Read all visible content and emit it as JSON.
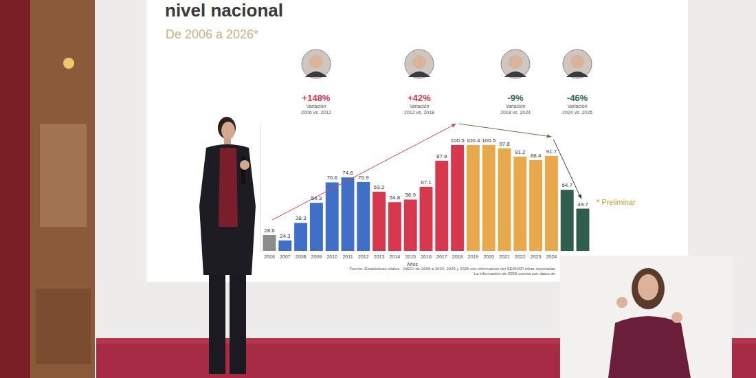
{
  "chart_data": {
    "type": "bar",
    "title": "nivel nacional",
    "subtitle": "De 2006 a 2026*",
    "x_label": "Años",
    "categories": [
      "2006",
      "2007",
      "2008",
      "2009",
      "2010",
      "2011",
      "2012",
      "2013",
      "2014",
      "2015",
      "2016",
      "2017",
      "2018",
      "2019",
      "2020",
      "2021",
      "2022",
      "2023",
      "2024",
      null,
      null
    ],
    "values": [
      28.6,
      24.3,
      38.3,
      54.3,
      70.6,
      74.6,
      70.9,
      63.2,
      54.8,
      56.9,
      67.1,
      87.9,
      100.5,
      100.4,
      100.5,
      97.8,
      91.2,
      88.4,
      91.7,
      64.7,
      49.7
    ],
    "colors": [
      "#8c8c8c",
      "#3f6fc6",
      "#3f6fc6",
      "#3f6fc6",
      "#3f6fc6",
      "#3f6fc6",
      "#3f6fc6",
      "#d8384e",
      "#d8384e",
      "#d8384e",
      "#d8384e",
      "#d8384e",
      "#d8384e",
      "#e8a94c",
      "#e8a94c",
      "#e8a94c",
      "#e8a94c",
      "#e8a94c",
      "#e8a94c",
      "#2f5e4f",
      "#2f5e4f"
    ],
    "ylim": [
      16,
      118
    ],
    "data_labels": true,
    "tick_labels": "x",
    "grid": false,
    "annotations": [
      {
        "text": "+148%",
        "label": "Variación",
        "period": "2006 vs. 2012",
        "color": "#d8384e"
      },
      {
        "text": "+42%",
        "label": "Variación",
        "period": "2012 vs. 2018",
        "color": "#d8384e"
      },
      {
        "text": "-9%",
        "label": "Variación",
        "period": "2018 vs. 2024",
        "color": "#2f6b4f"
      },
      {
        "text": "-46%",
        "label": "Variación",
        "period": "2024 vs. 2026",
        "color": "#2f6b4f"
      }
    ],
    "note": "* Preliminar",
    "source": [
      "Fuente: Estadísticas vitales - INEGI de 2006 a 2024, 2025 y 2026 con información del SESNSP cifras reportadas",
      "La información de 2026 cuenta con datos de"
    ]
  }
}
